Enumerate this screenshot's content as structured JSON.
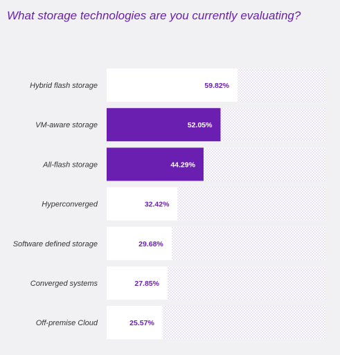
{
  "chart_data": {
    "type": "bar",
    "orientation": "horizontal",
    "title": "What storage technologies are you currently evaluating?",
    "categories": [
      "Hybrid flash storage",
      "VM-aware storage",
      "All-flash storage",
      "Hyperconverged",
      "Software defined storage",
      "Converged systems",
      "Off-premise Cloud"
    ],
    "values": [
      59.82,
      52.05,
      44.29,
      32.42,
      29.68,
      27.85,
      25.57
    ],
    "value_labels": [
      "59.82%",
      "52.05%",
      "44.29%",
      "32.42%",
      "29.68%",
      "27.85%",
      "25.57%"
    ],
    "highlighted": [
      false,
      true,
      true,
      false,
      false,
      false,
      false
    ],
    "xlim": [
      0,
      100
    ],
    "unit": "%",
    "grid": false,
    "legend": "none"
  },
  "colors": {
    "highlight_fill": "#6a1fb0",
    "normal_fill": "#ffffff",
    "highlight_text": "#ffffff",
    "normal_text": "#6a1fb0",
    "track_pattern": "#c9b6e4",
    "background": "#f1f0f3",
    "title": "#6a1fb0"
  }
}
